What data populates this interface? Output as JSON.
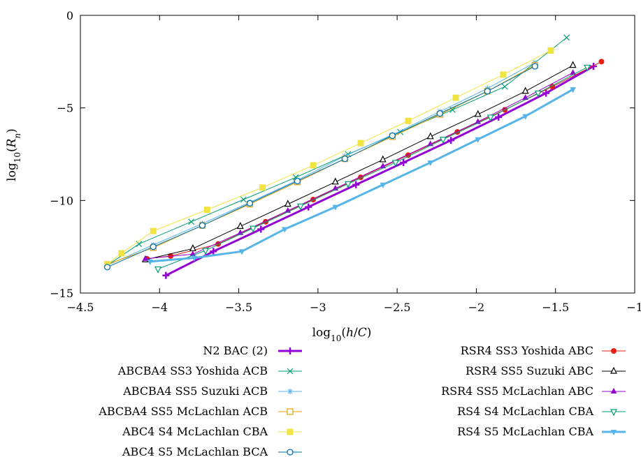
{
  "chart_data": {
    "type": "line",
    "xlabel": "log10(h/C)",
    "ylabel": "log10(Rn)",
    "xlim": [
      -4.5,
      -1
    ],
    "ylim": [
      -15,
      0
    ],
    "xticks": [
      -4.5,
      -4,
      -3.5,
      -3,
      -2.5,
      -2,
      -1.5,
      -1
    ],
    "xtick_labels": [
      "−4.5",
      "−4",
      "−3.5",
      "−3",
      "−2.5",
      "−2",
      "−1.5",
      "−1"
    ],
    "yticks": [
      -15,
      -10,
      -5,
      0
    ],
    "ytick_labels": [
      "−15",
      "−10",
      "−5",
      "0"
    ],
    "grid": false,
    "legend_position": "bottom",
    "series": [
      {
        "name": "N2 BAC (2)",
        "color": "#9400d3",
        "marker": "plus",
        "width": 3,
        "x": [
          -3.96,
          -3.66,
          -3.36,
          -3.06,
          -2.76,
          -2.46,
          -2.16,
          -1.86,
          -1.56,
          -1.26
        ],
        "y": [
          -14.05,
          -12.75,
          -11.55,
          -10.35,
          -9.15,
          -7.95,
          -6.75,
          -5.5,
          -4.2,
          -2.75
        ]
      },
      {
        "name": "ABCBA4 SS3 Yoshida ACB",
        "color": "#009e73",
        "marker": "x",
        "width": 1,
        "x": [
          -4.33,
          -4.13,
          -3.8,
          -3.47,
          -3.14,
          -2.81,
          -2.48,
          -2.15,
          -1.82,
          -1.43
        ],
        "y": [
          -13.5,
          -12.35,
          -11.15,
          -9.95,
          -8.75,
          -7.5,
          -6.3,
          -5.1,
          -3.85,
          -1.2
        ]
      },
      {
        "name": "ABCBA4 SS5 Suzuki ACB",
        "color": "#56b4e9",
        "marker": "star",
        "width": 1,
        "x": [
          -4.33,
          -4.04,
          -3.73,
          -3.43,
          -3.13,
          -2.83,
          -2.53,
          -2.23,
          -1.93,
          -1.63
        ],
        "y": [
          -13.5,
          -12.4,
          -11.25,
          -10.1,
          -8.9,
          -7.6,
          -6.45,
          -5.2,
          -3.95,
          -2.55
        ]
      },
      {
        "name": "ABCBA4 SS5 McLachlan ACB",
        "color": "#e69f00",
        "marker": "square-open",
        "width": 1,
        "x": [
          -4.33,
          -4.04,
          -3.73,
          -3.43,
          -3.13,
          -2.83,
          -2.53,
          -2.23,
          -1.93,
          -1.63
        ],
        "y": [
          -13.45,
          -12.55,
          -11.35,
          -10.2,
          -9.0,
          -7.75,
          -6.55,
          -5.35,
          -4.1,
          -2.7
        ]
      },
      {
        "name": "ABC4 S4 McLachlan CBA",
        "color": "#f0e442",
        "marker": "square-filled",
        "width": 1,
        "x": [
          -4.33,
          -4.24,
          -4.04,
          -3.7,
          -3.35,
          -3.03,
          -2.73,
          -2.43,
          -2.13,
          -1.83,
          -1.53
        ],
        "y": [
          -13.45,
          -12.85,
          -11.65,
          -10.5,
          -9.3,
          -8.1,
          -6.9,
          -5.7,
          -4.45,
          -3.2,
          -1.9
        ]
      },
      {
        "name": "ABC4 S5 McLachlan BCA",
        "color": "#0072b2",
        "marker": "circle-open",
        "width": 1,
        "x": [
          -4.33,
          -4.04,
          -3.73,
          -3.43,
          -3.13,
          -2.83,
          -2.53,
          -2.23,
          -1.93,
          -1.63
        ],
        "y": [
          -13.6,
          -12.5,
          -11.35,
          -10.15,
          -8.95,
          -7.75,
          -6.5,
          -5.3,
          -4.1,
          -2.75
        ]
      },
      {
        "name": "RSR4 SS3 Yoshida ABC",
        "color": "#e51e10",
        "marker": "circle-filled",
        "width": 1,
        "x": [
          -4.08,
          -3.93,
          -3.63,
          -3.33,
          -3.03,
          -2.73,
          -2.43,
          -2.12,
          -1.82,
          -1.52,
          -1.21
        ],
        "y": [
          -13.15,
          -13.0,
          -12.35,
          -11.15,
          -9.95,
          -8.75,
          -7.55,
          -6.3,
          -5.1,
          -3.85,
          -2.5
        ]
      },
      {
        "name": "RSR4 SS5 Suzuki ABC",
        "color": "#000000",
        "marker": "triangle-up-open",
        "width": 1,
        "x": [
          -4.09,
          -3.79,
          -3.49,
          -3.19,
          -2.89,
          -2.59,
          -2.29,
          -1.99,
          -1.69,
          -1.39
        ],
        "y": [
          -13.2,
          -12.6,
          -11.4,
          -10.2,
          -9.0,
          -7.8,
          -6.55,
          -5.35,
          -4.1,
          -2.7
        ]
      },
      {
        "name": "RSR4 SS5 McLachlan ABC",
        "color": "#9400d3",
        "marker": "triangle-up-filled",
        "width": 1,
        "x": [
          -4.09,
          -3.79,
          -3.49,
          -3.19,
          -2.89,
          -2.59,
          -2.29,
          -1.99,
          -1.69,
          -1.39
        ],
        "y": [
          -13.15,
          -12.9,
          -11.75,
          -10.55,
          -9.35,
          -8.15,
          -6.95,
          -5.75,
          -4.45,
          -3.1
        ]
      },
      {
        "name": "RS4 S4 McLachlan CBA",
        "color": "#009e73",
        "marker": "triangle-down-open",
        "width": 1,
        "x": [
          -4.01,
          -3.71,
          -3.41,
          -3.11,
          -2.81,
          -2.51,
          -2.21,
          -1.91,
          -1.61,
          -1.3
        ],
        "y": [
          -13.7,
          -12.7,
          -11.5,
          -10.3,
          -9.1,
          -7.95,
          -6.7,
          -5.5,
          -4.2,
          -2.8
        ]
      },
      {
        "name": "RS4 S5 McLachlan CBA",
        "color": "#56b4e9",
        "marker": "triangle-down-filled",
        "width": 3,
        "x": [
          -4.06,
          -3.78,
          -3.48,
          -3.21,
          -2.89,
          -2.59,
          -2.29,
          -1.99,
          -1.69,
          -1.39
        ],
        "y": [
          -13.3,
          -13.1,
          -12.75,
          -11.55,
          -10.35,
          -9.15,
          -7.95,
          -6.7,
          -5.45,
          -4.0
        ]
      }
    ]
  }
}
